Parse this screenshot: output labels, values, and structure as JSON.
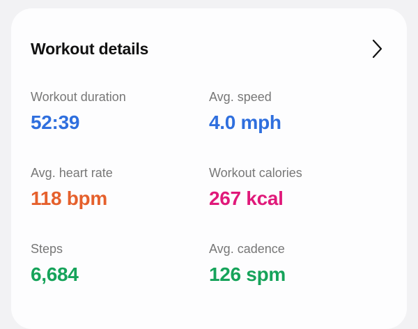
{
  "card": {
    "title": "Workout details",
    "chevron_icon": "chevron-right-icon"
  },
  "stats": [
    {
      "label": "Workout duration",
      "value": "52:39",
      "color": "#2f6fde"
    },
    {
      "label": "Avg. speed",
      "value": "4.0 mph",
      "color": "#2f6fde"
    },
    {
      "label": "Avg. heart rate",
      "value": "118 bpm",
      "color": "#e5602c"
    },
    {
      "label": "Workout calories",
      "value": "267 kcal",
      "color": "#e0197a"
    },
    {
      "label": "Steps",
      "value": "6,684",
      "color": "#16a35a"
    },
    {
      "label": "Avg. cadence",
      "value": "126 spm",
      "color": "#16a35a"
    }
  ]
}
